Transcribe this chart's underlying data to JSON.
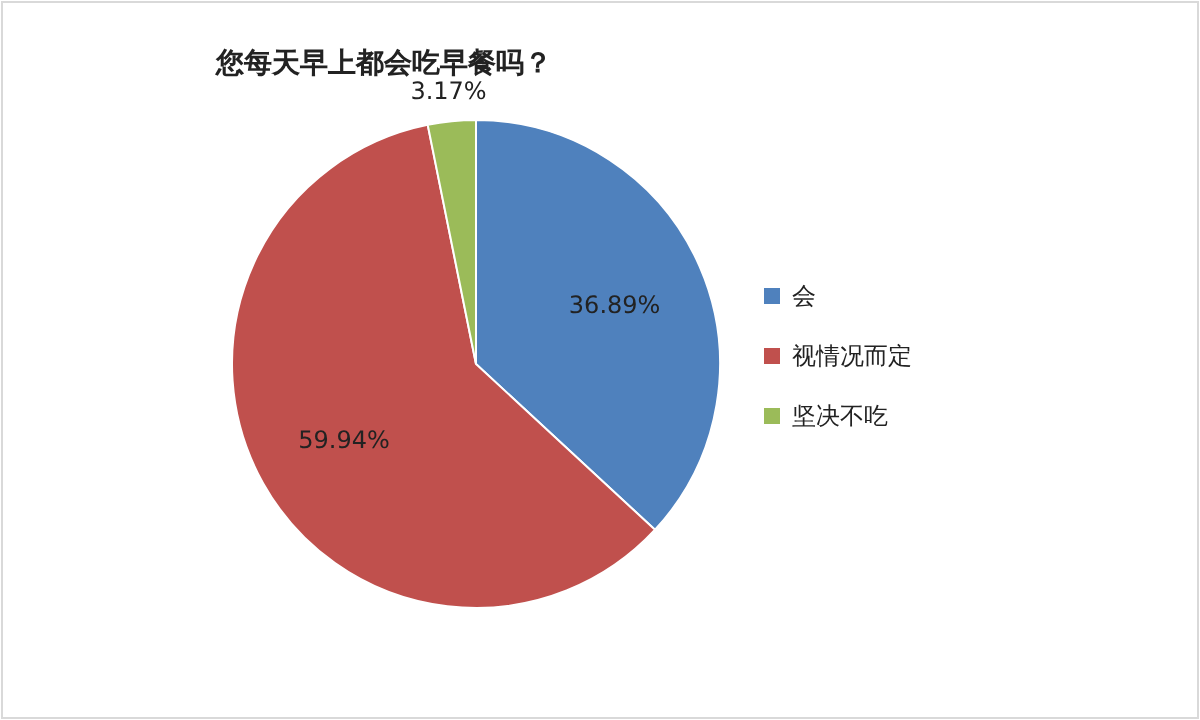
{
  "chart_data": {
    "type": "pie",
    "title": "您每天早上都会吃早餐吗？",
    "categories": [
      "会",
      "视情况而定",
      "坚决不吃"
    ],
    "values": [
      36.89,
      59.94,
      3.17
    ],
    "colors": [
      "#4f81bd",
      "#c0504d",
      "#9bbb59"
    ],
    "value_labels": [
      "36.89%",
      "59.94%",
      "3.17%"
    ],
    "legend": "right"
  }
}
